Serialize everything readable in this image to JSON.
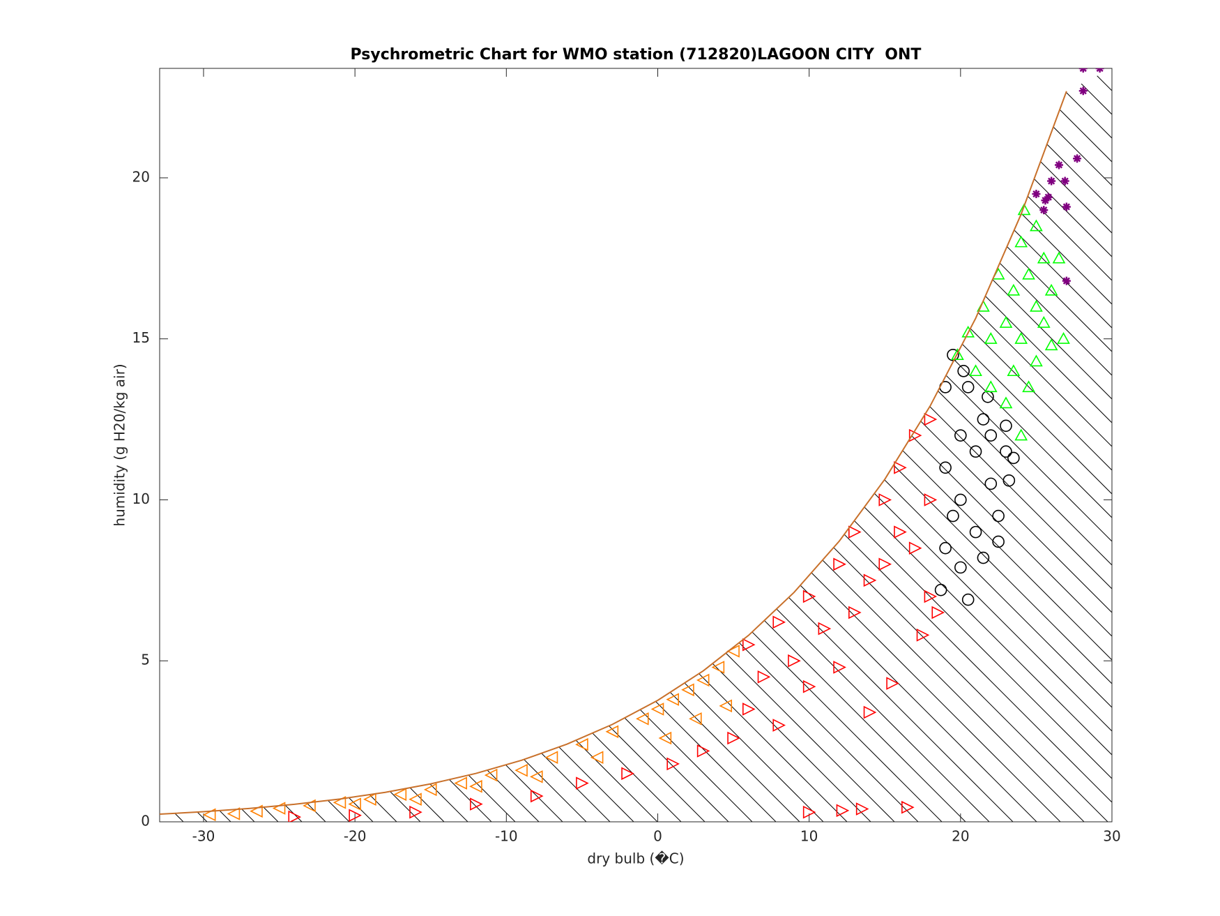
{
  "chart_data": {
    "type": "scatter",
    "title": "Psychrometric Chart for WMO station (712820)LAGOON CITY  ONT",
    "x_label": "dry bulb (�C)",
    "y_label": "humidity (g H20/kg air)",
    "xlim": [
      -32.9,
      30
    ],
    "ylim": [
      0,
      23.4
    ],
    "xticks": [
      -30,
      -20,
      -10,
      0,
      10,
      20,
      30
    ],
    "yticks": [
      0,
      5,
      10,
      15,
      20
    ],
    "curve": {
      "color": "#c8702a",
      "x": [
        -33,
        -30,
        -27,
        -24,
        -21,
        -18,
        -15,
        -12,
        -9,
        -6,
        -3,
        0,
        3,
        6,
        9,
        12,
        15,
        18,
        21,
        24,
        27
      ],
      "values": [
        0.235,
        0.313,
        0.414,
        0.544,
        0.708,
        0.916,
        1.178,
        1.505,
        1.91,
        2.411,
        3.025,
        3.773,
        4.686,
        5.792,
        7.124,
        8.723,
        10.64,
        12.92,
        15.64,
        18.87,
        22.69
      ]
    },
    "series": [
      {
        "color": "#ff8000",
        "marker": "triangle-left",
        "x": [
          -29.6,
          -28,
          -26.5,
          -25,
          -23,
          -21,
          -19,
          -17,
          -15,
          -13,
          -11,
          -9,
          -7,
          -5,
          -3,
          -1,
          0,
          1,
          2,
          3,
          4,
          5,
          -20,
          -12,
          -4,
          2.5,
          4.5,
          -8,
          -16,
          0.5
        ],
        "values": [
          0.22,
          0.25,
          0.33,
          0.42,
          0.5,
          0.6,
          0.7,
          0.85,
          1.0,
          1.2,
          1.45,
          1.6,
          2.0,
          2.4,
          2.8,
          3.2,
          3.5,
          3.8,
          4.1,
          4.4,
          4.8,
          5.3,
          0.55,
          1.1,
          2.0,
          3.2,
          3.6,
          1.4,
          0.7,
          2.6
        ]
      },
      {
        "color": "#ff0000",
        "marker": "triangle-right",
        "x": [
          -24,
          -20,
          -16,
          -12,
          -8,
          -5,
          -2,
          1,
          3,
          5,
          6,
          6,
          7,
          8,
          8,
          9,
          10,
          10,
          10,
          11,
          12,
          12,
          12.2,
          13,
          13,
          13.5,
          14,
          14,
          15,
          15,
          15.5,
          16,
          16,
          16.5,
          17,
          17,
          18,
          18,
          18,
          18.5,
          17.5
        ],
        "values": [
          0.15,
          0.2,
          0.3,
          0.55,
          0.8,
          1.2,
          1.5,
          1.8,
          2.2,
          2.6,
          5.5,
          3.5,
          4.5,
          6.2,
          3.0,
          5.0,
          7.0,
          4.2,
          0.3,
          6.0,
          8.0,
          4.8,
          0.35,
          9.0,
          6.5,
          0.4,
          7.5,
          3.4,
          10,
          8.0,
          4.3,
          11,
          9,
          0.45,
          12,
          8.5,
          12.5,
          10,
          7.0,
          6.5,
          5.8
        ]
      },
      {
        "color": "#000000",
        "marker": "circle",
        "x": [
          18.7,
          19,
          19,
          19,
          19.5,
          19.5,
          20,
          20,
          20,
          20.5,
          20.5,
          21,
          21,
          21.5,
          21.5,
          22,
          22,
          22.5,
          22.5,
          23,
          23,
          23.2,
          23.5,
          21.8,
          20.2
        ],
        "values": [
          7.2,
          8.5,
          11,
          13.5,
          14.5,
          9.5,
          12,
          10,
          7.9,
          13.5,
          6.9,
          11.5,
          9,
          12.5,
          8.2,
          10.5,
          12,
          9.5,
          8.7,
          11.5,
          12.3,
          10.6,
          11.3,
          13.2,
          14
        ]
      },
      {
        "color": "#00ff00",
        "marker": "triangle-up",
        "x": [
          19.8,
          20.5,
          21,
          21.5,
          22,
          22,
          22.5,
          23,
          23,
          23.5,
          23.5,
          24,
          24,
          24,
          24.5,
          24.5,
          25,
          25,
          25,
          25.5,
          25.5,
          26,
          26,
          26.5,
          26.8,
          24.2
        ],
        "values": [
          14.5,
          15.2,
          14,
          16,
          15,
          13.5,
          17,
          15.5,
          13,
          16.5,
          14,
          18,
          15,
          12,
          17,
          13.5,
          18.5,
          16,
          14.3,
          17.5,
          15.5,
          16.5,
          14.8,
          17.5,
          15,
          19
        ]
      },
      {
        "color": "#800080",
        "marker": "star",
        "x": [
          25,
          25.5,
          25.8,
          26,
          26.5,
          26.9,
          27,
          27.7,
          28.1,
          28.1,
          29.2,
          27,
          25.6
        ],
        "values": [
          19.5,
          19,
          19.4,
          19.9,
          20.4,
          19.9,
          19.1,
          20.6,
          23.4,
          22.7,
          23.4,
          16.8,
          19.3
        ]
      }
    ]
  }
}
